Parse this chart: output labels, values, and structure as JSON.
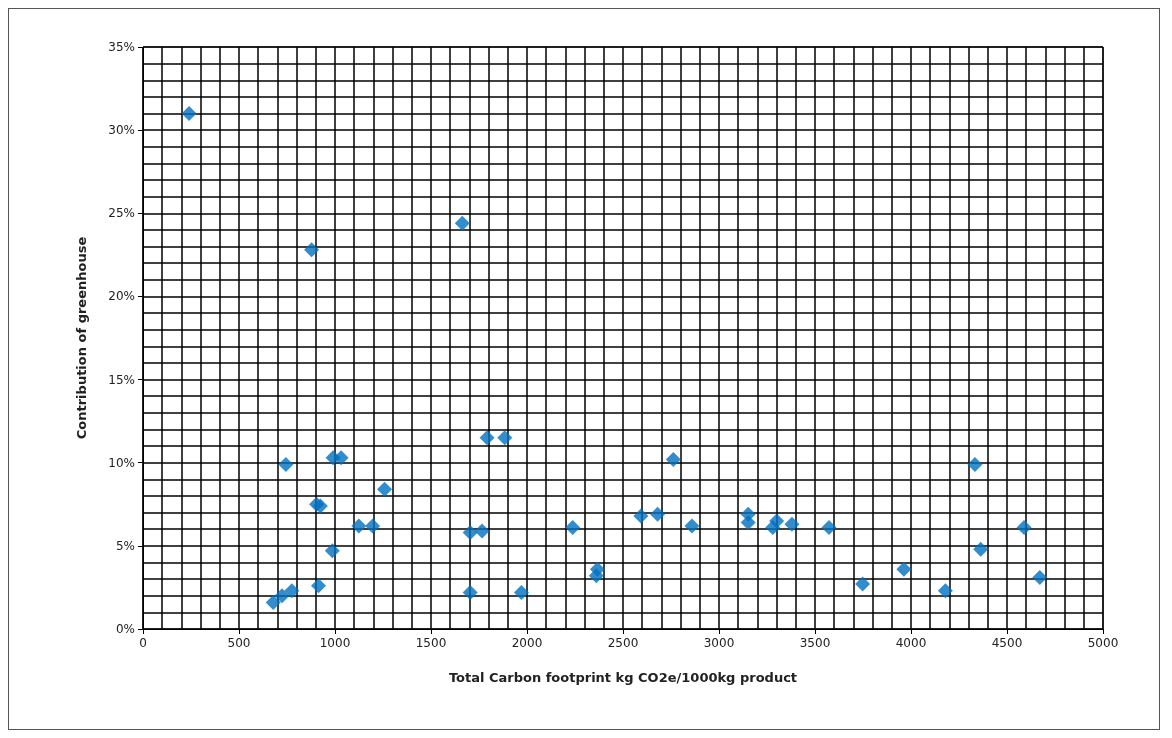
{
  "chart_data": {
    "type": "scatter",
    "xlabel": "Total Carbon footprint kg CO2e/1000kg product",
    "ylabel": "Contribution of greenhouse",
    "xlim": [
      0,
      5000
    ],
    "xticks": [
      0,
      500,
      1000,
      1500,
      2000,
      2500,
      3000,
      3500,
      4000,
      4500,
      5000
    ],
    "ylim": [
      0,
      35
    ],
    "yticks": [
      {
        "value": 0,
        "label": "0%"
      },
      {
        "value": 5,
        "label": "5%"
      },
      {
        "value": 10,
        "label": "10%"
      },
      {
        "value": 15,
        "label": "15%"
      },
      {
        "value": 20,
        "label": "20%"
      },
      {
        "value": 25,
        "label": "25%"
      },
      {
        "value": 30,
        "label": "30%"
      },
      {
        "value": 35,
        "label": "35%"
      }
    ],
    "grid": true,
    "marker": "diamond",
    "series": [
      {
        "color": "#0070c0",
        "x": [
          240,
          1663,
          878,
          744,
          990,
          1032,
          1258,
          904,
          924,
          1124,
          1196,
          986,
          678,
          724,
          775,
          914,
          1704,
          1766,
          1792,
          1884,
          1704,
          1971,
          2238,
          2361,
          2367,
          2593,
          2680,
          2762,
          2859,
          3152,
          3152,
          3280,
          3300,
          3380,
          3573,
          3748,
          3963,
          4179,
          4333,
          4363,
          4589,
          4671
        ],
        "values": [
          31.0,
          24.4,
          22.8,
          9.9,
          10.3,
          10.3,
          8.4,
          7.5,
          7.4,
          6.2,
          6.2,
          4.7,
          1.6,
          2.0,
          2.3,
          2.6,
          5.8,
          5.9,
          11.5,
          11.5,
          2.2,
          2.2,
          6.1,
          3.2,
          3.6,
          6.8,
          6.9,
          10.2,
          6.2,
          6.9,
          6.4,
          6.1,
          6.5,
          6.3,
          6.1,
          2.7,
          3.6,
          2.3,
          9.9,
          4.8,
          6.1,
          3.1
        ]
      }
    ]
  }
}
